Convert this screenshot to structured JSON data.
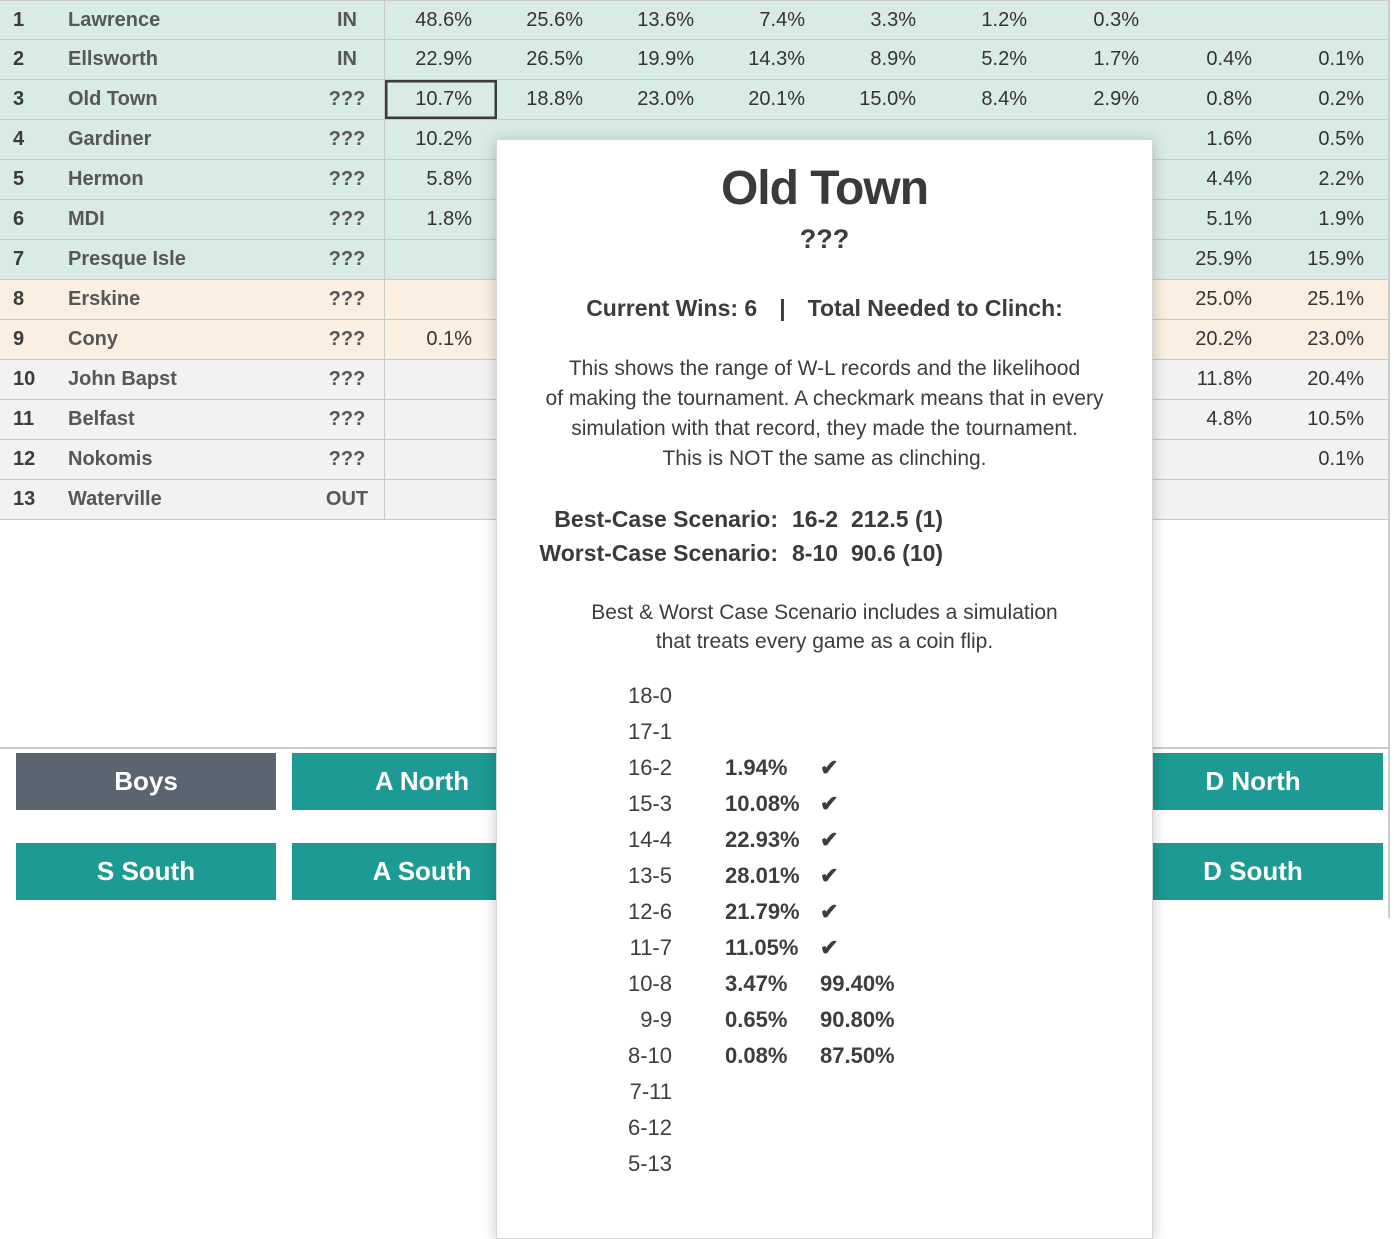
{
  "colors": {
    "teal": "#1d9a94",
    "dark": "#5b6571",
    "mint": "#d9ebe7",
    "cream": "#faefe0",
    "gray": "#f2f2f2",
    "row_border": "#c9c9c9",
    "selection_border": "#3c3c3c"
  },
  "standings": {
    "selected_team": "Old Town",
    "rows": [
      {
        "rank": "1",
        "team": "Lawrence",
        "status": "IN",
        "tone": "mint",
        "cells": [
          "48.6%",
          "25.6%",
          "13.6%",
          "7.4%",
          "3.3%",
          "1.2%",
          "0.3%",
          "",
          ""
        ]
      },
      {
        "rank": "2",
        "team": "Ellsworth",
        "status": "IN",
        "tone": "mint",
        "cells": [
          "22.9%",
          "26.5%",
          "19.9%",
          "14.3%",
          "8.9%",
          "5.2%",
          "1.7%",
          "0.4%",
          "0.1%"
        ]
      },
      {
        "rank": "3",
        "team": "Old Town",
        "status": "???",
        "tone": "mint",
        "selected_col": 0,
        "cells": [
          "10.7%",
          "18.8%",
          "23.0%",
          "20.1%",
          "15.0%",
          "8.4%",
          "2.9%",
          "0.8%",
          "0.2%"
        ]
      },
      {
        "rank": "4",
        "team": "Gardiner",
        "status": "???",
        "tone": "mint",
        "cells": [
          "10.2%",
          "",
          "",
          "",
          "",
          "",
          "",
          "1.6%",
          "0.5%"
        ]
      },
      {
        "rank": "5",
        "team": "Hermon",
        "status": "???",
        "tone": "mint",
        "cells": [
          "5.8%",
          "",
          "",
          "",
          "",
          "",
          "",
          "4.4%",
          "2.2%"
        ]
      },
      {
        "rank": "6",
        "team": "MDI",
        "status": "???",
        "tone": "mint",
        "cells": [
          "1.8%",
          "",
          "",
          "",
          "",
          "",
          "",
          "5.1%",
          "1.9%"
        ]
      },
      {
        "rank": "7",
        "team": "Presque Isle",
        "status": "???",
        "tone": "mint",
        "cells": [
          "",
          "",
          "",
          "",
          "",
          "",
          "",
          "25.9%",
          "15.9%"
        ]
      },
      {
        "rank": "8",
        "team": "Erskine",
        "status": "???",
        "tone": "cream",
        "cells": [
          "",
          "",
          "",
          "",
          "",
          "",
          "",
          "25.0%",
          "25.1%"
        ]
      },
      {
        "rank": "9",
        "team": "Cony",
        "status": "???",
        "tone": "cream",
        "cells": [
          "0.1%",
          "",
          "",
          "",
          "",
          "",
          "",
          "20.2%",
          "23.0%"
        ]
      },
      {
        "rank": "10",
        "team": "John Bapst",
        "status": "???",
        "tone": "gray",
        "cells": [
          "",
          "",
          "",
          "",
          "",
          "",
          "",
          "11.8%",
          "20.4%"
        ]
      },
      {
        "rank": "11",
        "team": "Belfast",
        "status": "???",
        "tone": "gray",
        "cells": [
          "",
          "",
          "",
          "",
          "",
          "",
          "",
          "4.8%",
          "10.5%"
        ]
      },
      {
        "rank": "12",
        "team": "Nokomis",
        "status": "???",
        "tone": "gray",
        "cells": [
          "",
          "",
          "",
          "",
          "",
          "",
          "",
          "",
          "0.1%"
        ]
      },
      {
        "rank": "13",
        "team": "Waterville",
        "status": "OUT",
        "tone": "gray",
        "cells": [
          "",
          "",
          "",
          "",
          "",
          "",
          "",
          "",
          ""
        ]
      }
    ]
  },
  "tooltip": {
    "title": "Old Town",
    "subtitle": "???",
    "wins": {
      "current": "Current Wins: 6",
      "separator": "|",
      "clinch": "Total Needed to Clinch:"
    },
    "description_lines": [
      "This shows the range of W-L records and the likelihood",
      "of making the tournament. A checkmark means that in every",
      "simulation with that record, they made the tournament.",
      "This is NOT the same as clinching."
    ],
    "scenarios": [
      {
        "label": "Best-Case Scenario:",
        "record": "16-2",
        "score": "212.5 (1)"
      },
      {
        "label": "Worst-Case Scenario:",
        "record": "8-10",
        "score": "90.6 (10)"
      }
    ],
    "note_lines": [
      "Best & Worst Case Scenario includes a simulation",
      "that treats every game as a coin flip."
    ],
    "records": [
      {
        "record": "18-0",
        "prob": "",
        "clinch": ""
      },
      {
        "record": "17-1",
        "prob": "",
        "clinch": ""
      },
      {
        "record": "16-2",
        "prob": "1.94%",
        "clinch": "✔"
      },
      {
        "record": "15-3",
        "prob": "10.08%",
        "clinch": "✔"
      },
      {
        "record": "14-4",
        "prob": "22.93%",
        "clinch": "✔"
      },
      {
        "record": "13-5",
        "prob": "28.01%",
        "clinch": "✔"
      },
      {
        "record": "12-6",
        "prob": "21.79%",
        "clinch": "✔"
      },
      {
        "record": "11-7",
        "prob": "11.05%",
        "clinch": "✔"
      },
      {
        "record": "10-8",
        "prob": "3.47%",
        "clinch": "99.40%"
      },
      {
        "record": "9-9",
        "prob": "0.65%",
        "clinch": "90.80%"
      },
      {
        "record": "8-10",
        "prob": "0.08%",
        "clinch": "87.50%"
      },
      {
        "record": "7-11",
        "prob": "",
        "clinch": ""
      },
      {
        "record": "6-12",
        "prob": "",
        "clinch": ""
      },
      {
        "record": "5-13",
        "prob": "",
        "clinch": ""
      }
    ]
  },
  "filters": [
    {
      "id": "boys",
      "label": "Boys",
      "variant": "dark"
    },
    {
      "id": "a-north",
      "label": "A North",
      "variant": "teal"
    },
    {
      "id": "d-north",
      "label": "D North",
      "variant": "teal"
    },
    {
      "id": "s-south",
      "label": "S South",
      "variant": "teal"
    },
    {
      "id": "a-south",
      "label": "A South",
      "variant": "teal"
    },
    {
      "id": "d-south",
      "label": "D South",
      "variant": "teal"
    }
  ]
}
